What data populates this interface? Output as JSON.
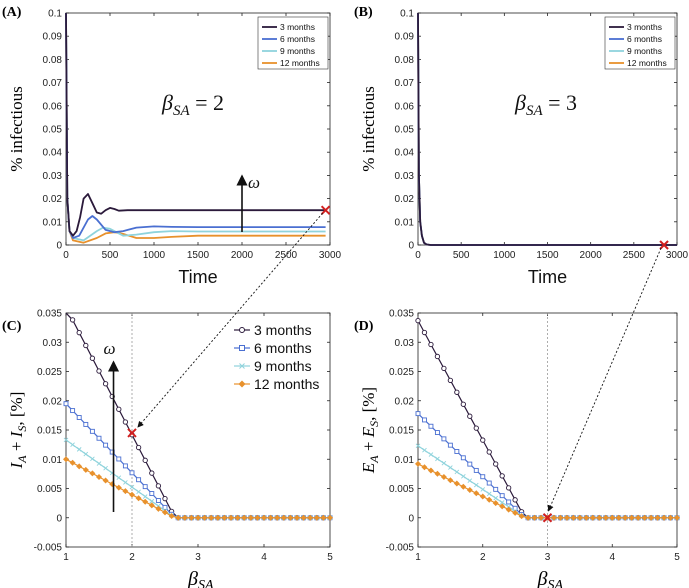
{
  "colors": {
    "3 months": "#2b1a3b",
    "6 months": "#4a6fd1",
    "9 months": "#8fd3dc",
    "12 months": "#e8912c",
    "marker": "#d11f1f"
  },
  "chart_data": [
    {
      "panel": "(A)",
      "type": "line",
      "xlabel": "Time",
      "ylabel": "% infectious",
      "annotation": "β_SA = 2",
      "annotation_main": "β",
      "annotation_sub": "SA",
      "annotation_rest": " = 2",
      "arrow_label": "ω",
      "xlim": [
        0,
        3000
      ],
      "ylim": [
        0,
        0.1
      ],
      "xticks": [
        0,
        500,
        1000,
        1500,
        2000,
        2500,
        3000
      ],
      "yticks": [
        0,
        0.01,
        0.02,
        0.03,
        0.04,
        0.05,
        0.06,
        0.07,
        0.08,
        0.09,
        0.1
      ],
      "legend": [
        "3 months",
        "6 months",
        "9 months",
        "12 months"
      ],
      "marker_point": [
        2950,
        0.015
      ],
      "series": [
        {
          "name": "3 months",
          "x": [
            0,
            15,
            40,
            80,
            120,
            160,
            200,
            250,
            300,
            350,
            400,
            450,
            500,
            550,
            600,
            700,
            800,
            1000,
            1500,
            2000,
            2500,
            2950
          ],
          "y": [
            0.1,
            0.02,
            0.006,
            0.004,
            0.006,
            0.012,
            0.02,
            0.022,
            0.018,
            0.014,
            0.0135,
            0.015,
            0.016,
            0.0155,
            0.0148,
            0.015,
            0.015,
            0.015,
            0.015,
            0.015,
            0.015,
            0.015
          ]
        },
        {
          "name": "6 months",
          "x": [
            0,
            15,
            40,
            80,
            150,
            250,
            300,
            350,
            450,
            550,
            650,
            800,
            1000,
            1200,
            1500,
            2000,
            2500,
            2950
          ],
          "y": [
            0.1,
            0.02,
            0.006,
            0.003,
            0.004,
            0.011,
            0.0125,
            0.011,
            0.0065,
            0.0055,
            0.006,
            0.0075,
            0.008,
            0.0078,
            0.0077,
            0.0077,
            0.0077,
            0.0077
          ]
        },
        {
          "name": "9 months",
          "x": [
            0,
            15,
            40,
            80,
            200,
            350,
            420,
            500,
            650,
            800,
            1000,
            1200,
            1500,
            2000,
            2500,
            2950
          ],
          "y": [
            0.1,
            0.02,
            0.006,
            0.003,
            0.002,
            0.006,
            0.0075,
            0.007,
            0.004,
            0.0045,
            0.0055,
            0.006,
            0.0058,
            0.0058,
            0.0058,
            0.0058
          ]
        },
        {
          "name": "12 months",
          "x": [
            0,
            15,
            40,
            80,
            200,
            350,
            450,
            550,
            650,
            800,
            1000,
            1200,
            1500,
            2000,
            2500,
            2950
          ],
          "y": [
            0.1,
            0.02,
            0.006,
            0.002,
            0.001,
            0.003,
            0.005,
            0.0055,
            0.0048,
            0.003,
            0.003,
            0.0035,
            0.004,
            0.004,
            0.004,
            0.004
          ]
        }
      ]
    },
    {
      "panel": "(B)",
      "type": "line",
      "xlabel": "Time",
      "ylabel": "% infectious",
      "annotation": "β_SA = 3",
      "annotation_main": "β",
      "annotation_sub": "SA",
      "annotation_rest": " = 3",
      "xlim": [
        0,
        3000
      ],
      "ylim": [
        0,
        0.1
      ],
      "xticks": [
        0,
        500,
        1000,
        1500,
        2000,
        2500,
        3000
      ],
      "yticks": [
        0,
        0.01,
        0.02,
        0.03,
        0.04,
        0.05,
        0.06,
        0.07,
        0.08,
        0.09,
        0.1
      ],
      "legend": [
        "3 months",
        "6 months",
        "9 months",
        "12 months"
      ],
      "marker_point": [
        2850,
        0
      ],
      "series": [
        {
          "name": "3 months",
          "x": [
            0,
            10,
            25,
            45,
            70,
            100,
            150,
            3000
          ],
          "y": [
            0.1,
            0.03,
            0.01,
            0.004,
            0.001,
            0.0002,
            0,
            0
          ]
        },
        {
          "name": "6 months",
          "x": [
            0,
            10,
            25,
            45,
            70,
            100,
            150,
            3000
          ],
          "y": [
            0.1,
            0.03,
            0.01,
            0.004,
            0.001,
            0.0002,
            0,
            0
          ]
        },
        {
          "name": "9 months",
          "x": [
            0,
            10,
            25,
            45,
            70,
            100,
            150,
            3000
          ],
          "y": [
            0.1,
            0.03,
            0.01,
            0.004,
            0.001,
            0.0002,
            0,
            0
          ]
        },
        {
          "name": "12 months",
          "x": [
            0,
            10,
            25,
            45,
            70,
            100,
            150,
            3000
          ],
          "y": [
            0.1,
            0.03,
            0.01,
            0.004,
            0.001,
            0.0002,
            0,
            0
          ]
        }
      ]
    },
    {
      "panel": "(C)",
      "type": "line",
      "xlabel": "β_SA",
      "xlabel_main": "β",
      "xlabel_sub": "SA",
      "ylabel": "I_A + I_S, [%]",
      "ylabel_parts": [
        "I",
        "A",
        " + ",
        "I",
        "S",
        ", [%]"
      ],
      "arrow_label": "ω",
      "xlim": [
        1,
        5
      ],
      "ylim": [
        -0.005,
        0.035
      ],
      "xticks": [
        1,
        2,
        3,
        4,
        5
      ],
      "yticks": [
        -0.005,
        0,
        0.005,
        0.01,
        0.015,
        0.02,
        0.025,
        0.03,
        0.035
      ],
      "vline": 2,
      "legend": [
        "3 months",
        "6 months",
        "9 months",
        "12 months"
      ],
      "marker_point": [
        2,
        0.0145
      ],
      "threshold": 2.65,
      "series": [
        {
          "name": "3 months",
          "y_at_1": 0.036,
          "marker": "circle"
        },
        {
          "name": "6 months",
          "y_at_1": 0.0195,
          "marker": "square"
        },
        {
          "name": "9 months",
          "y_at_1": 0.0133,
          "marker": "x"
        },
        {
          "name": "12 months",
          "y_at_1": 0.01,
          "marker": "diamond"
        }
      ]
    },
    {
      "panel": "(D)",
      "type": "line",
      "xlabel": "β_SA",
      "xlabel_main": "β",
      "xlabel_sub": "SA",
      "ylabel": "E_A + E_S, [%]",
      "ylabel_parts": [
        "E",
        "A",
        " + ",
        "E",
        "S",
        ", [%]"
      ],
      "xlim": [
        1,
        5
      ],
      "ylim": [
        -0.005,
        0.035
      ],
      "xticks": [
        1,
        2,
        3,
        4,
        5
      ],
      "yticks": [
        -0.005,
        0,
        0.005,
        0.01,
        0.015,
        0.02,
        0.025,
        0.03,
        0.035
      ],
      "vline": 3,
      "marker_point": [
        3,
        0
      ],
      "threshold": 2.65,
      "series": [
        {
          "name": "3 months",
          "y_at_1": 0.0337,
          "marker": "circle"
        },
        {
          "name": "6 months",
          "y_at_1": 0.0178,
          "marker": "square"
        },
        {
          "name": "9 months",
          "y_at_1": 0.0123,
          "marker": "x"
        },
        {
          "name": "12 months",
          "y_at_1": 0.0092,
          "marker": "diamond"
        }
      ]
    }
  ]
}
